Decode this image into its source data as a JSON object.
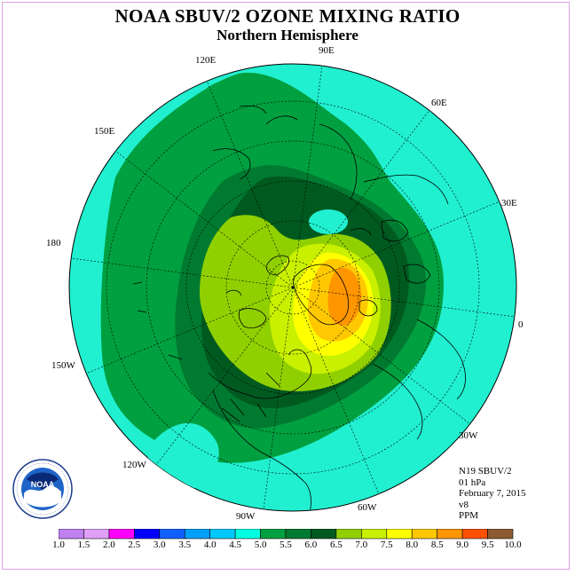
{
  "title": "NOAA SBUV/2 OZONE MIXING RATIO",
  "subtitle": "Northern Hemisphere",
  "longitude_labels": [
    "90E",
    "60E",
    "30E",
    "0",
    "30W",
    "60W",
    "90W",
    "120W",
    "150W",
    "180",
    "150E",
    "120E"
  ],
  "info": {
    "satellite": "N19 SBUV/2",
    "level": "01 hPa",
    "date": "February 7, 2015",
    "version": "v8",
    "units": "PPM"
  },
  "colorbar": {
    "ticks": [
      "1.0",
      "1.5",
      "2.0",
      "2.5",
      "3.0",
      "3.5",
      "4.0",
      "4.5",
      "5.0",
      "5.5",
      "6.0",
      "6.5",
      "7.0",
      "7.5",
      "8.0",
      "8.5",
      "9.0",
      "9.5",
      "10.0"
    ],
    "colors": [
      "#c080f0",
      "#e0a0f8",
      "#ff00ff",
      "#0000ff",
      "#1060ff",
      "#00a0ff",
      "#00c8ff",
      "#00ffe0",
      "#00a040",
      "#007a30",
      "#005a20",
      "#90d000",
      "#c8f000",
      "#ffff00",
      "#ffc800",
      "#ff9600",
      "#ff5000",
      "#ff0000",
      "#8b5a30"
    ]
  },
  "map_colors": {
    "ocean_bg": "#20f0d0",
    "band_5_0": "#00a040",
    "band_5_5": "#007a30",
    "band_6_0": "#005a20",
    "band_6_5": "#90d000",
    "band_7_0": "#c8f000",
    "band_7_5": "#ffff00",
    "band_8_0": "#ffc800",
    "band_8_5": "#ff9600"
  }
}
